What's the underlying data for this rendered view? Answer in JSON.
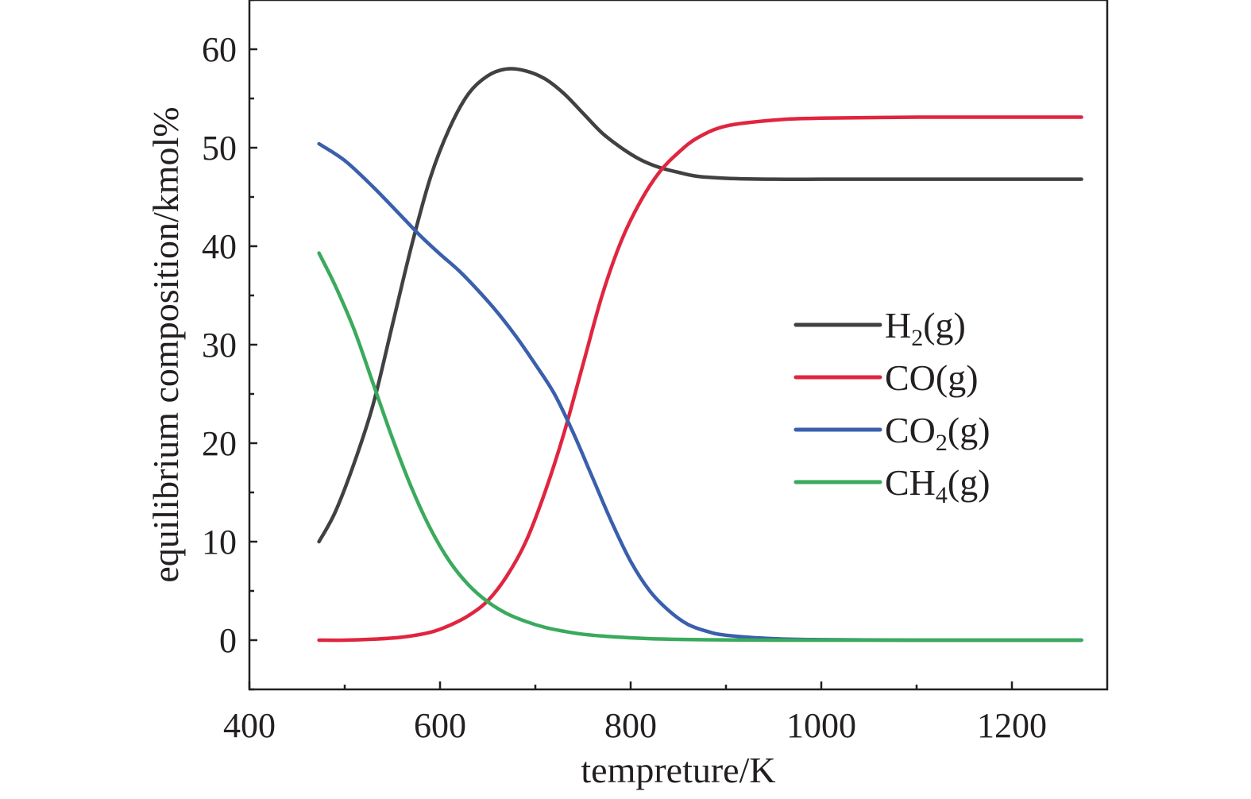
{
  "chart_data": {
    "type": "line",
    "title": "",
    "xlabel": "tempreture/K",
    "ylabel": "equilibrium composition/kmol%",
    "xlim": [
      400,
      1300
    ],
    "ylim": [
      -5,
      65
    ],
    "xticks": [
      400,
      600,
      800,
      1000,
      1200
    ],
    "yticks": [
      0,
      10,
      20,
      30,
      40,
      50,
      60
    ],
    "grid": false,
    "legend_position": "right-center",
    "series": [
      {
        "name": "H2(g)",
        "label_main": "H",
        "label_sub": "2",
        "label_tail": "(g)",
        "color": "#414042",
        "x": [
          473,
          490,
          510,
          530,
          550,
          570,
          590,
          610,
          630,
          650,
          670,
          690,
          710,
          730,
          750,
          770,
          790,
          810,
          830,
          850,
          870,
          900,
          950,
          1000,
          1100,
          1200,
          1273
        ],
        "y": [
          10,
          13,
          18,
          24,
          32,
          40,
          47,
          52,
          55.5,
          57.3,
          58,
          57.8,
          57,
          55.5,
          53.5,
          51.5,
          50,
          48.8,
          48,
          47.5,
          47.1,
          46.9,
          46.8,
          46.8,
          46.8,
          46.8,
          46.8
        ]
      },
      {
        "name": "CO(g)",
        "label_main": "CO",
        "label_sub": "",
        "label_tail": "(g)",
        "color": "#e0253f",
        "x": [
          473,
          500,
          530,
          560,
          590,
          610,
          630,
          650,
          670,
          690,
          710,
          730,
          750,
          770,
          790,
          810,
          830,
          850,
          870,
          900,
          950,
          1000,
          1100,
          1200,
          1273
        ],
        "y": [
          0,
          0,
          0.1,
          0.3,
          0.8,
          1.5,
          2.5,
          4,
          6.5,
          10,
          15,
          21,
          28,
          35,
          40.5,
          44.5,
          47.5,
          49.5,
          51,
          52.2,
          52.8,
          53,
          53.1,
          53.1,
          53.1
        ]
      },
      {
        "name": "CO2(g)",
        "label_main": "CO",
        "label_sub": "2",
        "label_tail": "(g)",
        "color": "#3a5fac",
        "x": [
          473,
          500,
          530,
          560,
          580,
          600,
          620,
          640,
          660,
          680,
          700,
          720,
          740,
          760,
          780,
          800,
          820,
          840,
          860,
          880,
          900,
          950,
          1000,
          1100,
          1200,
          1273
        ],
        "y": [
          50.4,
          48.7,
          46,
          43,
          41,
          39.2,
          37.5,
          35.5,
          33.3,
          30.8,
          28,
          25,
          21,
          16.5,
          12,
          8,
          5,
          3,
          1.6,
          0.9,
          0.5,
          0.15,
          0.05,
          0,
          0,
          0
        ]
      },
      {
        "name": "CH4(g)",
        "label_main": "CH",
        "label_sub": "4",
        "label_tail": "(g)",
        "color": "#3aaa5c",
        "x": [
          473,
          490,
          510,
          530,
          550,
          570,
          590,
          610,
          630,
          650,
          670,
          690,
          710,
          730,
          750,
          780,
          820,
          870,
          950,
          1000,
          1100,
          1200,
          1273
        ],
        "y": [
          39.3,
          36,
          31.5,
          26,
          20.5,
          15.5,
          11.3,
          8,
          5.6,
          3.9,
          2.7,
          1.9,
          1.3,
          0.9,
          0.6,
          0.35,
          0.15,
          0.05,
          0,
          0,
          0,
          0,
          0
        ]
      }
    ]
  }
}
